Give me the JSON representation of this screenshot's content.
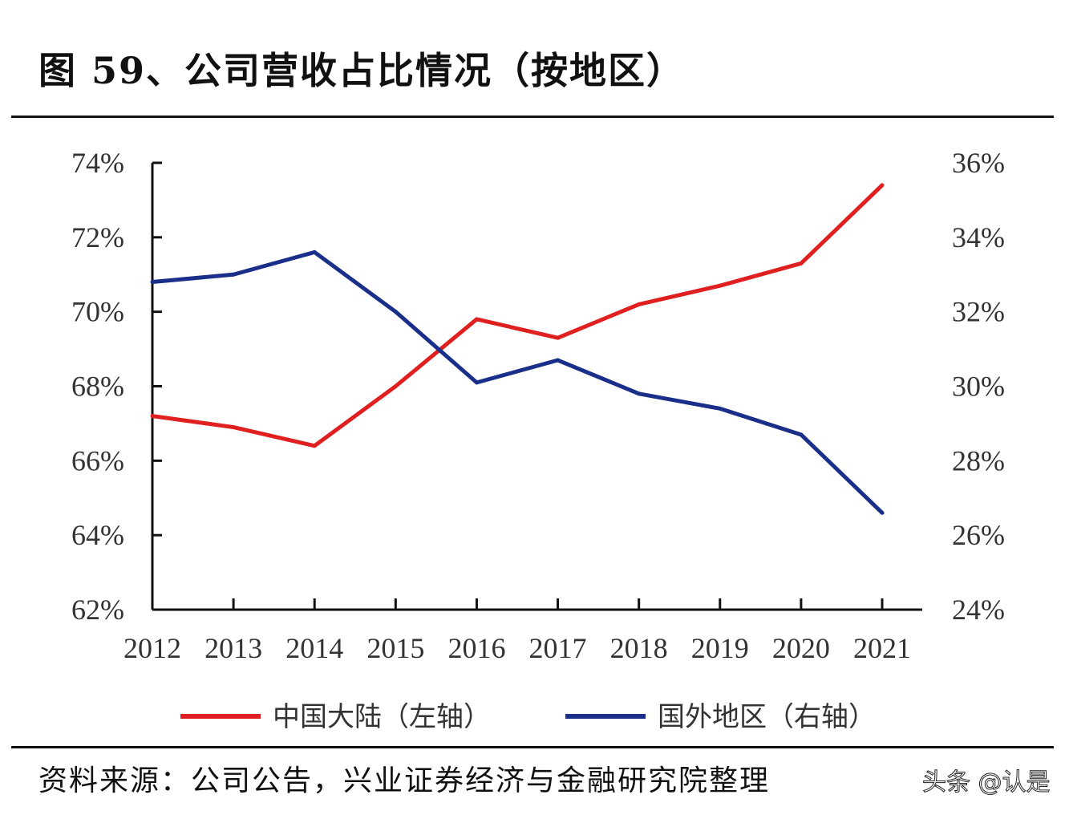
{
  "title": "图 59、公司营收占比情况（按地区）",
  "source": "资料来源：公司公告，兴业证券经济与金融研究院整理",
  "watermark": "头条 @认是",
  "chart_data": {
    "type": "line",
    "title": "图 59、公司营收占比情况（按地区）",
    "x": [
      "2012",
      "2013",
      "2014",
      "2015",
      "2016",
      "2017",
      "2018",
      "2019",
      "2020",
      "2021"
    ],
    "y_left": {
      "ylim": [
        62,
        74
      ],
      "ticks": [
        "62%",
        "64%",
        "66%",
        "68%",
        "70%",
        "72%",
        "74%"
      ]
    },
    "y_right": {
      "ylim": [
        24,
        36
      ],
      "ticks": [
        "24%",
        "26%",
        "28%",
        "30%",
        "32%",
        "34%",
        "36%"
      ]
    },
    "legend_position": "bottom",
    "series": [
      {
        "name": "中国大陆（左轴）",
        "axis": "left",
        "color": "#e02020",
        "values": [
          67.2,
          66.9,
          66.4,
          68.0,
          69.8,
          69.3,
          70.2,
          70.7,
          71.3,
          73.4
        ]
      },
      {
        "name": "国外地区（右轴）",
        "axis": "right",
        "color": "#1a2f8a",
        "values": [
          32.8,
          33.0,
          33.6,
          32.0,
          30.1,
          30.7,
          29.8,
          29.4,
          28.7,
          26.6
        ]
      }
    ]
  }
}
